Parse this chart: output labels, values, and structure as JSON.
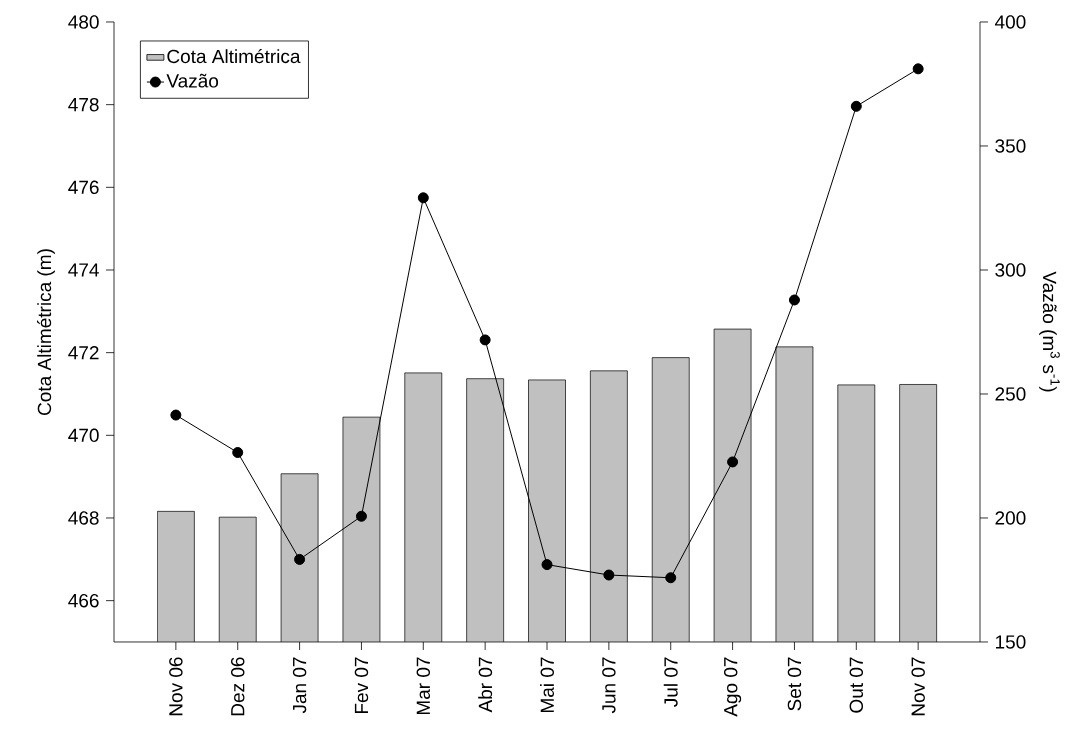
{
  "chart_data": {
    "type": "bar",
    "categories": [
      "Nov 06",
      "Dez 06",
      "Jan 07",
      "Fev 07",
      "Mar 07",
      "Abr 07",
      "Mai 07",
      "Jun 07",
      "Jul 07",
      "Ago 07",
      "Set 07",
      "Out 07",
      "Nov 07"
    ],
    "series": [
      {
        "name": "Cota Altimétrica",
        "color": "#c0c0c0",
        "values": [
          468.16,
          468.02,
          469.07,
          470.44,
          471.51,
          471.37,
          471.34,
          471.56,
          471.88,
          472.57,
          472.14,
          471.22,
          471.23
        ]
      },
      {
        "name": "Vazão",
        "type": "line",
        "axis": "y2",
        "color": "#000000",
        "marker": "circle",
        "values": [
          241.5,
          226.4,
          183.3,
          200.7,
          329.1,
          271.8,
          181.2,
          177.0,
          175.9,
          222.6,
          287.9,
          366.0,
          381.1
        ]
      }
    ],
    "ylabel": "Cota Altimétrica (m)",
    "y2label": "Vazão (m$^{3}$ s$^{-1}$)",
    "ylim": [
      465,
      480
    ],
    "yticks": [
      466,
      468,
      470,
      472,
      474,
      476,
      478,
      480
    ],
    "y2lim": [
      150,
      400
    ],
    "y2ticks": [
      150,
      200,
      250,
      300,
      350,
      400
    ],
    "legend": "top left"
  }
}
